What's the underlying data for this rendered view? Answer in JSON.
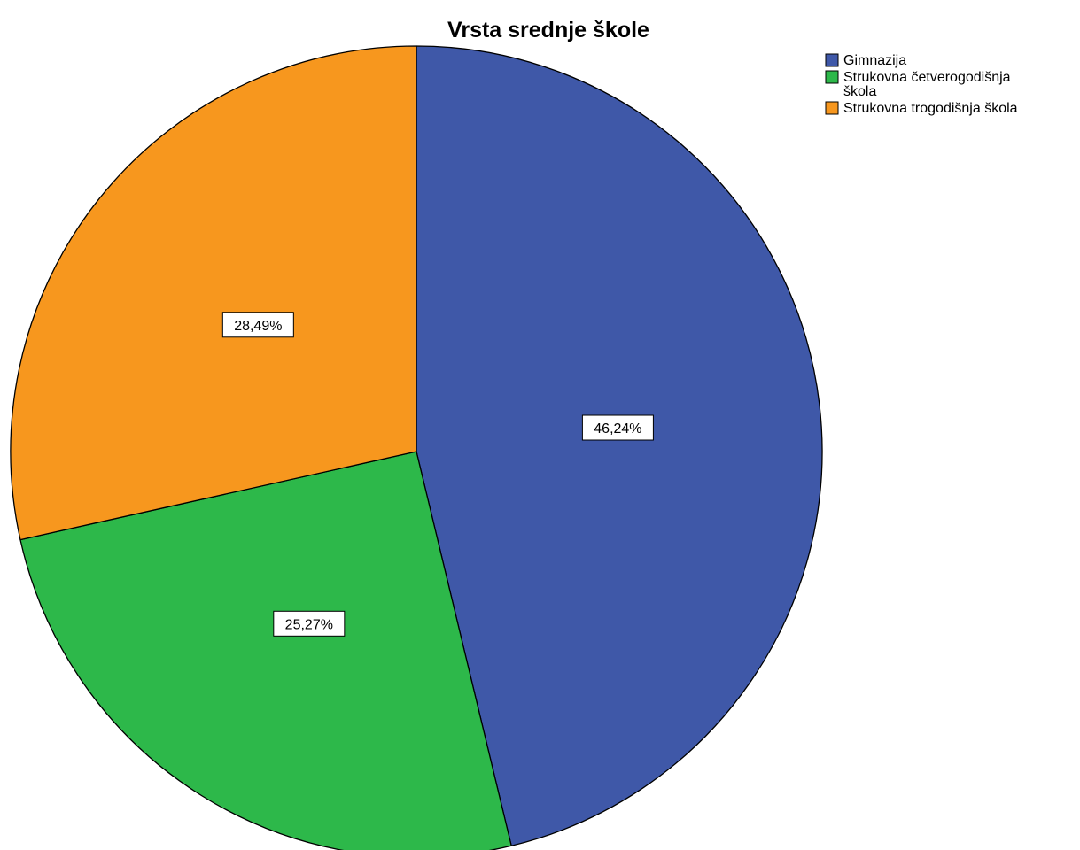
{
  "chart_data": {
    "type": "pie",
    "title": "Vrsta srednje škole",
    "legend_position": "top-right",
    "slices": [
      {
        "name": "Gimnazija",
        "legend_lines": [
          "Gimnazija"
        ],
        "value": 46.24,
        "label": "46,24%",
        "color": "#3F58A8"
      },
      {
        "name": "Strukovna četverogodišnja škola",
        "legend_lines": [
          "Strukovna četverogodišnja",
          "škola"
        ],
        "value": 25.27,
        "label": "25,27%",
        "color": "#2DB84A"
      },
      {
        "name": "Strukovna trogodišnja škola",
        "legend_lines": [
          "Strukovna trogodišnja škola"
        ],
        "value": 28.49,
        "label": "28,49%",
        "color": "#F7971E"
      }
    ]
  }
}
